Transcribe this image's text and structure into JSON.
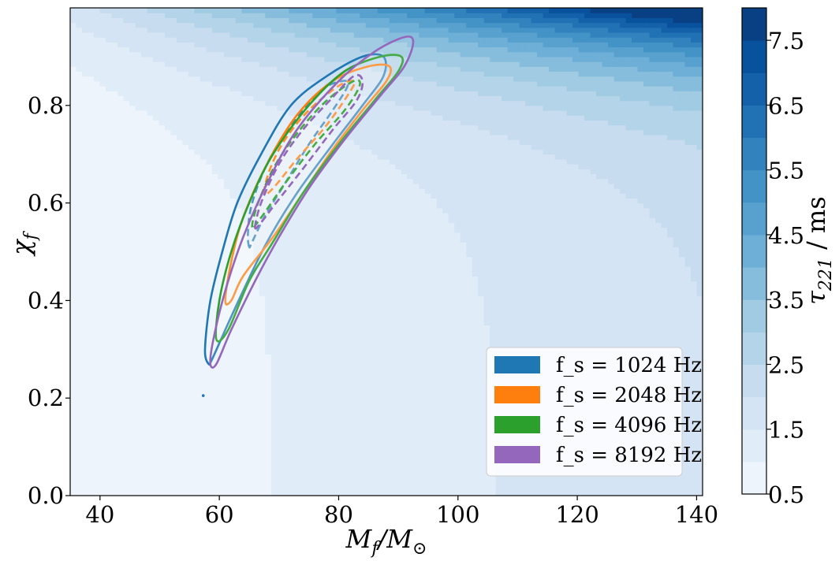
{
  "chart_data": {
    "type": "contour",
    "xlabel": "M_f/M_⊙",
    "ylabel": "χ_f",
    "colorbar_label": "τ_221 / ms",
    "xlim": [
      35,
      141
    ],
    "ylim": [
      0.0,
      1.0
    ],
    "x_ticks": [
      "40",
      "60",
      "80",
      "100",
      "120",
      "140"
    ],
    "y_ticks": [
      "0.0",
      "0.2",
      "0.4",
      "0.6",
      "0.8"
    ],
    "colorbar_range": [
      0.5,
      8.0
    ],
    "colorbar_ticks": [
      "0.5",
      "1.5",
      "2.5",
      "3.5",
      "4.5",
      "5.5",
      "6.5",
      "7.5"
    ],
    "colorbar_levels": [
      0.5,
      1.0,
      1.5,
      2.0,
      2.5,
      3.0,
      3.5,
      4.0,
      4.5,
      5.0,
      5.5,
      6.0,
      6.5,
      7.0,
      7.5,
      8.0
    ],
    "colormap": "Blues",
    "legend_position": "lower-right",
    "legend": [
      {
        "label": "f_s = 1024 Hz",
        "color": "#1f77b4"
      },
      {
        "label": "f_s = 2048 Hz",
        "color": "#ff7f0e"
      },
      {
        "label": "f_s = 4096 Hz",
        "color": "#2ca02c"
      },
      {
        "label": "f_s = 8192 Hz",
        "color": "#9467bd"
      }
    ],
    "series": [
      {
        "color": "#1f77b4",
        "outer_contour": [
          [
            58.2,
            0.27
          ],
          [
            57.6,
            0.3
          ],
          [
            58.5,
            0.4
          ],
          [
            60.5,
            0.5
          ],
          [
            63,
            0.6
          ],
          [
            67,
            0.7
          ],
          [
            72,
            0.8
          ],
          [
            78,
            0.86
          ],
          [
            84,
            0.9
          ],
          [
            87.5,
            0.9
          ],
          [
            87.5,
            0.86
          ],
          [
            84,
            0.8
          ],
          [
            79,
            0.72
          ],
          [
            73,
            0.62
          ],
          [
            68,
            0.52
          ],
          [
            64,
            0.42
          ],
          [
            61,
            0.34
          ],
          [
            58.8,
            0.28
          ]
        ],
        "inner_contour": [
          [
            65,
            0.51
          ],
          [
            64.8,
            0.54
          ],
          [
            65.5,
            0.6
          ],
          [
            68,
            0.68
          ],
          [
            72,
            0.76
          ],
          [
            77,
            0.83
          ],
          [
            80.5,
            0.85
          ],
          [
            81.5,
            0.84
          ],
          [
            79,
            0.79
          ],
          [
            75,
            0.72
          ],
          [
            71,
            0.64
          ],
          [
            67.5,
            0.57
          ],
          [
            65.5,
            0.52
          ]
        ],
        "point": [
          57.3,
          0.205
        ]
      },
      {
        "color": "#ff7f0e",
        "outer_contour": [
          [
            61,
            0.4
          ],
          [
            62,
            0.48
          ],
          [
            64,
            0.57
          ],
          [
            68,
            0.68
          ],
          [
            73,
            0.78
          ],
          [
            79,
            0.85
          ],
          [
            85,
            0.88
          ],
          [
            88.5,
            0.88
          ],
          [
            88,
            0.85
          ],
          [
            84,
            0.79
          ],
          [
            79,
            0.71
          ],
          [
            74,
            0.62
          ],
          [
            69,
            0.53
          ],
          [
            64,
            0.45
          ],
          [
            62,
            0.4
          ]
        ],
        "inner_contour": [
          [
            67.5,
            0.62
          ],
          [
            68.5,
            0.67
          ],
          [
            71,
            0.73
          ],
          [
            75,
            0.79
          ],
          [
            80,
            0.84
          ],
          [
            82.5,
            0.85
          ],
          [
            82,
            0.83
          ],
          [
            78,
            0.76
          ],
          [
            73,
            0.69
          ],
          [
            69,
            0.63
          ]
        ]
      },
      {
        "color": "#2ca02c",
        "outer_contour": [
          [
            59.5,
            0.32
          ],
          [
            60,
            0.4
          ],
          [
            62,
            0.5
          ],
          [
            65,
            0.6
          ],
          [
            69,
            0.7
          ],
          [
            75,
            0.8
          ],
          [
            81,
            0.87
          ],
          [
            87,
            0.9
          ],
          [
            90.5,
            0.9
          ],
          [
            90,
            0.87
          ],
          [
            86,
            0.81
          ],
          [
            80,
            0.72
          ],
          [
            74,
            0.62
          ],
          [
            69,
            0.52
          ],
          [
            65,
            0.44
          ],
          [
            61.5,
            0.34
          ]
        ],
        "inner_contour": [
          [
            65.5,
            0.55
          ],
          [
            66.5,
            0.6
          ],
          [
            69.5,
            0.68
          ],
          [
            73.5,
            0.75
          ],
          [
            78,
            0.81
          ],
          [
            82.5,
            0.85
          ],
          [
            83.5,
            0.84
          ],
          [
            81,
            0.79
          ],
          [
            76,
            0.72
          ],
          [
            71,
            0.64
          ],
          [
            67,
            0.57
          ]
        ]
      },
      {
        "color": "#9467bd",
        "outer_contour": [
          [
            58.5,
            0.27
          ],
          [
            59,
            0.32
          ],
          [
            61,
            0.42
          ],
          [
            64,
            0.53
          ],
          [
            68,
            0.64
          ],
          [
            73,
            0.75
          ],
          [
            80,
            0.85
          ],
          [
            86,
            0.91
          ],
          [
            91,
            0.94
          ],
          [
            92.5,
            0.93
          ],
          [
            91,
            0.88
          ],
          [
            87,
            0.82
          ],
          [
            81,
            0.73
          ],
          [
            75,
            0.63
          ],
          [
            70,
            0.53
          ],
          [
            66,
            0.44
          ],
          [
            62,
            0.34
          ],
          [
            59.5,
            0.27
          ]
        ],
        "inner_contour": [
          [
            66,
            0.55
          ],
          [
            67,
            0.6
          ],
          [
            70,
            0.68
          ],
          [
            74,
            0.75
          ],
          [
            78.5,
            0.81
          ],
          [
            82.5,
            0.86
          ],
          [
            84,
            0.85
          ],
          [
            83,
            0.81
          ],
          [
            79,
            0.75
          ],
          [
            74,
            0.67
          ],
          [
            69.5,
            0.6
          ],
          [
            67,
            0.56
          ]
        ]
      }
    ]
  }
}
